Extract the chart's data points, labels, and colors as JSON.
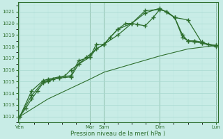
{
  "title": "",
  "xlabel": "Pression niveau de la mer( hPa )",
  "ylabel": "",
  "bg_color": "#c8ece6",
  "grid_major_color": "#a8d8d0",
  "grid_minor_color": "#b8e4de",
  "line_color": "#2d6e2d",
  "vline_color": "#4a7a4a",
  "ylim": [
    1011.5,
    1021.8
  ],
  "yticks": [
    1012,
    1013,
    1014,
    1015,
    1016,
    1017,
    1018,
    1019,
    1020,
    1021
  ],
  "day_labels": [
    "Ven",
    "",
    "Mar",
    "Sam",
    "",
    "Dim",
    "",
    "Lun"
  ],
  "day_positions": [
    0.0,
    0.143,
    0.357,
    0.429,
    0.571,
    0.714,
    0.857,
    1.0
  ],
  "vline_positions": [
    0.0,
    0.357,
    0.429,
    0.714,
    1.0
  ],
  "lines": [
    {
      "x": [
        0.0,
        0.03,
        0.06,
        0.09,
        0.12,
        0.143,
        0.17,
        0.2,
        0.23,
        0.26,
        0.3,
        0.34,
        0.357,
        0.39,
        0.429,
        0.46,
        0.5,
        0.54,
        0.57,
        0.6,
        0.64,
        0.68,
        0.714,
        0.75,
        0.79,
        0.83,
        0.857,
        0.89,
        0.93,
        0.96,
        1.0
      ],
      "y": [
        1012.0,
        1012.7,
        1013.5,
        1014.2,
        1014.9,
        1015.0,
        1015.2,
        1015.3,
        1015.5,
        1016.0,
        1016.5,
        1017.1,
        1017.3,
        1017.8,
        1018.2,
        1018.8,
        1019.5,
        1020.0,
        1020.0,
        1019.9,
        1019.8,
        1020.5,
        1021.2,
        1021.0,
        1020.5,
        1019.0,
        1018.5,
        1018.5,
        1018.4,
        1018.2,
        1018.1
      ],
      "marker": "+",
      "markersize": 4,
      "lw": 0.9
    },
    {
      "x": [
        0.0,
        0.06,
        0.12,
        0.143,
        0.2,
        0.26,
        0.3,
        0.357,
        0.39,
        0.429,
        0.5,
        0.571,
        0.64,
        0.714,
        0.79,
        0.857,
        0.93,
        1.0
      ],
      "y": [
        1012.0,
        1013.8,
        1015.0,
        1015.1,
        1015.3,
        1015.4,
        1016.5,
        1017.1,
        1017.8,
        1018.2,
        1019.0,
        1020.0,
        1020.9,
        1021.3,
        1020.5,
        1020.3,
        1018.3,
        1018.1
      ],
      "marker": "+",
      "markersize": 4,
      "lw": 0.9
    },
    {
      "x": [
        0.0,
        0.06,
        0.12,
        0.143,
        0.2,
        0.26,
        0.3,
        0.357,
        0.39,
        0.429,
        0.5,
        0.571,
        0.64,
        0.714,
        0.75,
        0.79,
        0.83,
        0.857,
        0.89,
        0.93,
        1.0
      ],
      "y": [
        1012.0,
        1014.2,
        1015.1,
        1015.2,
        1015.4,
        1015.5,
        1016.8,
        1017.1,
        1018.2,
        1018.2,
        1019.5,
        1020.0,
        1021.1,
        1021.2,
        1021.0,
        1020.5,
        1018.8,
        1018.5,
        1018.4,
        1018.3,
        1018.0
      ],
      "marker": "+",
      "markersize": 4,
      "lw": 0.9
    },
    {
      "x": [
        0.0,
        0.143,
        0.357,
        0.429,
        0.571,
        0.714,
        0.857,
        1.0
      ],
      "y": [
        1012.0,
        1013.5,
        1015.2,
        1015.8,
        1016.5,
        1017.2,
        1017.8,
        1018.1
      ],
      "marker": null,
      "markersize": 0,
      "lw": 0.8
    }
  ]
}
